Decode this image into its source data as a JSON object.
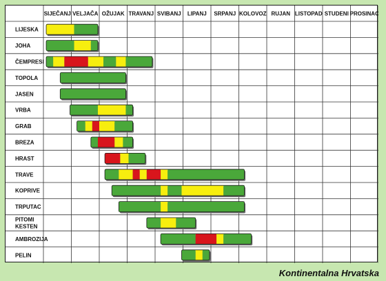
{
  "caption": "Kontinentalna Hrvatska",
  "colors": {
    "low": "#4aa83a",
    "medium": "#f7ee0f",
    "high": "#d8151c",
    "background": "#c7e7b0"
  },
  "chart_data": {
    "type": "table",
    "subtype": "timeline-gantt",
    "columns": [
      "SIJEČANJ",
      "VELJAČA",
      "OŽUJAK",
      "TRAVANJ",
      "SVIBANJ",
      "LIPANJ",
      "SRPANJ",
      "KOLOVOZ",
      "RUJAN",
      "LISTOPAD",
      "STUDENI",
      "PROSINAC"
    ],
    "x_unit": "month index (0 = start of SIJEČANJ, 12 = end of PROSINAC)",
    "legend_levels": [
      "low",
      "medium",
      "high"
    ],
    "rows": [
      {
        "label": [
          "LIJESKA"
        ],
        "segments": [
          [
            0.1,
            1.1,
            "medium"
          ],
          [
            1.1,
            1.95,
            "low"
          ]
        ]
      },
      {
        "label": [
          "JOHA"
        ],
        "segments": [
          [
            0.1,
            1.1,
            "low"
          ],
          [
            1.1,
            1.7,
            "medium"
          ],
          [
            1.7,
            1.95,
            "low"
          ]
        ]
      },
      {
        "label": [
          "ČEMPRESI"
        ],
        "segments": [
          [
            0.1,
            0.35,
            "low"
          ],
          [
            0.35,
            0.75,
            "medium"
          ],
          [
            0.75,
            1.6,
            "high"
          ],
          [
            1.6,
            2.15,
            "medium"
          ],
          [
            2.15,
            2.6,
            "low"
          ],
          [
            2.6,
            2.95,
            "medium"
          ],
          [
            2.95,
            3.9,
            "low"
          ]
        ]
      },
      {
        "label": [
          "TOPOLA"
        ],
        "segments": [
          [
            0.6,
            2.95,
            "low"
          ]
        ]
      },
      {
        "label": [
          "JASEN"
        ],
        "segments": [
          [
            0.6,
            2.95,
            "low"
          ]
        ]
      },
      {
        "label": [
          "VRBA"
        ],
        "segments": [
          [
            0.95,
            1.95,
            "low"
          ],
          [
            1.95,
            2.95,
            "medium"
          ],
          [
            2.95,
            3.2,
            "low"
          ]
        ]
      },
      {
        "label": [
          "GRAB"
        ],
        "segments": [
          [
            1.2,
            1.5,
            "low"
          ],
          [
            1.5,
            1.75,
            "medium"
          ],
          [
            1.75,
            2.0,
            "high"
          ],
          [
            2.0,
            2.55,
            "medium"
          ],
          [
            2.55,
            3.2,
            "low"
          ]
        ]
      },
      {
        "label": [
          "BREZA"
        ],
        "segments": [
          [
            1.7,
            1.95,
            "low"
          ],
          [
            1.95,
            2.55,
            "high"
          ],
          [
            2.55,
            2.85,
            "medium"
          ],
          [
            2.85,
            3.2,
            "low"
          ]
        ]
      },
      {
        "label": [
          "HRAST"
        ],
        "segments": [
          [
            2.2,
            2.75,
            "high"
          ],
          [
            2.75,
            3.05,
            "medium"
          ],
          [
            3.05,
            3.65,
            "low"
          ]
        ]
      },
      {
        "label": [
          "TRAVE"
        ],
        "segments": [
          [
            2.2,
            2.7,
            "low"
          ],
          [
            2.7,
            3.2,
            "medium"
          ],
          [
            3.2,
            3.45,
            "high"
          ],
          [
            3.45,
            3.7,
            "medium"
          ],
          [
            3.7,
            4.2,
            "high"
          ],
          [
            4.2,
            4.45,
            "medium"
          ],
          [
            4.45,
            7.2,
            "low"
          ]
        ]
      },
      {
        "label": [
          "KOPRIVE"
        ],
        "segments": [
          [
            2.45,
            4.2,
            "low"
          ],
          [
            4.2,
            4.45,
            "medium"
          ],
          [
            4.45,
            4.95,
            "low"
          ],
          [
            4.95,
            6.45,
            "medium"
          ],
          [
            6.45,
            7.2,
            "low"
          ]
        ]
      },
      {
        "label": [
          "TRPUTAC"
        ],
        "segments": [
          [
            2.7,
            4.2,
            "low"
          ],
          [
            4.2,
            4.45,
            "medium"
          ],
          [
            4.45,
            7.2,
            "low"
          ]
        ]
      },
      {
        "label": [
          "PITOMI",
          "KESTEN"
        ],
        "segments": [
          [
            3.7,
            4.2,
            "low"
          ],
          [
            4.2,
            4.75,
            "medium"
          ],
          [
            4.75,
            5.45,
            "low"
          ]
        ]
      },
      {
        "label": [
          "AMBROZIJA"
        ],
        "segments": [
          [
            4.2,
            5.45,
            "low"
          ],
          [
            5.45,
            6.2,
            "high"
          ],
          [
            6.2,
            6.45,
            "medium"
          ],
          [
            6.45,
            7.45,
            "low"
          ]
        ]
      },
      {
        "label": [
          "PELIN"
        ],
        "segments": [
          [
            4.95,
            5.45,
            "low"
          ],
          [
            5.45,
            5.7,
            "medium"
          ],
          [
            5.7,
            5.95,
            "low"
          ]
        ]
      }
    ]
  }
}
